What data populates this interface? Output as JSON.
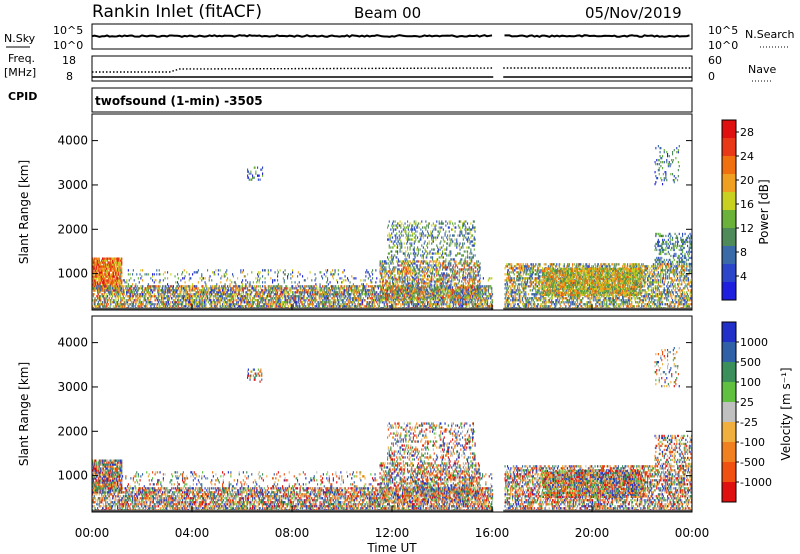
{
  "header": {
    "title": "Rankin Inlet (fitACF)",
    "beam": "Beam 00",
    "date": "05/Nov/2019"
  },
  "top_panels": {
    "nsky_label": "N.Sky",
    "nsky_ticks": [
      "10^5",
      "10^0"
    ],
    "nsearch_label": "N.Search",
    "nsearch_ticks": [
      "10^5",
      "10^0"
    ],
    "freq_label": "Freq.",
    "freq_unit": "[MHz]",
    "freq_ticks": [
      "18",
      "8"
    ],
    "nave_label": "Nave",
    "nave_ticks": [
      "60",
      "0"
    ],
    "cpid_label": "CPID",
    "cpid_value": "twofsound (1-min) -3505"
  },
  "colors": {
    "power": [
      "#1f1fe0",
      "#2b46c8",
      "#3a6aa8",
      "#4f8a5a",
      "#6ab23a",
      "#c8d020",
      "#f0a020",
      "#f07010",
      "#e83818",
      "#e01010"
    ],
    "velocity": [
      "#e01010",
      "#f05010",
      "#f08020",
      "#f0b040",
      "#c0c0c0",
      "#60c040",
      "#3a8f5a",
      "#3060a8",
      "#2030c8"
    ]
  },
  "chart_data": [
    {
      "type": "heatmap",
      "name": "power",
      "ylabel": "Slant Range [km]",
      "xlabel": "Time UT",
      "ylim": [
        180,
        4600
      ],
      "yticks": [
        1000,
        2000,
        3000,
        4000
      ],
      "xticks": [
        "00:00",
        "04:00",
        "08:00",
        "12:00",
        "16:00",
        "20:00",
        "00:00"
      ],
      "xlim_hours": [
        0,
        24
      ],
      "colorbar": {
        "label": "Power [dB]",
        "ticks": [
          "4",
          "8",
          "12",
          "16",
          "20",
          "24",
          "28"
        ],
        "range": [
          0,
          30
        ]
      }
    },
    {
      "type": "heatmap",
      "name": "velocity",
      "ylabel": "Slant Range [km]",
      "xlabel": "Time UT",
      "ylim": [
        180,
        4600
      ],
      "yticks": [
        1000,
        2000,
        3000,
        4000
      ],
      "xticks": [
        "00:00",
        "04:00",
        "08:00",
        "12:00",
        "16:00",
        "20:00",
        "00:00"
      ],
      "xlim_hours": [
        0,
        24
      ],
      "colorbar": {
        "label": "Velocity [m s⁻¹]",
        "ticks": [
          "1000",
          "500",
          "100",
          "25",
          "-25",
          "-100",
          "-500",
          "-1000"
        ]
      }
    }
  ],
  "xaxis_label": "Time UT"
}
